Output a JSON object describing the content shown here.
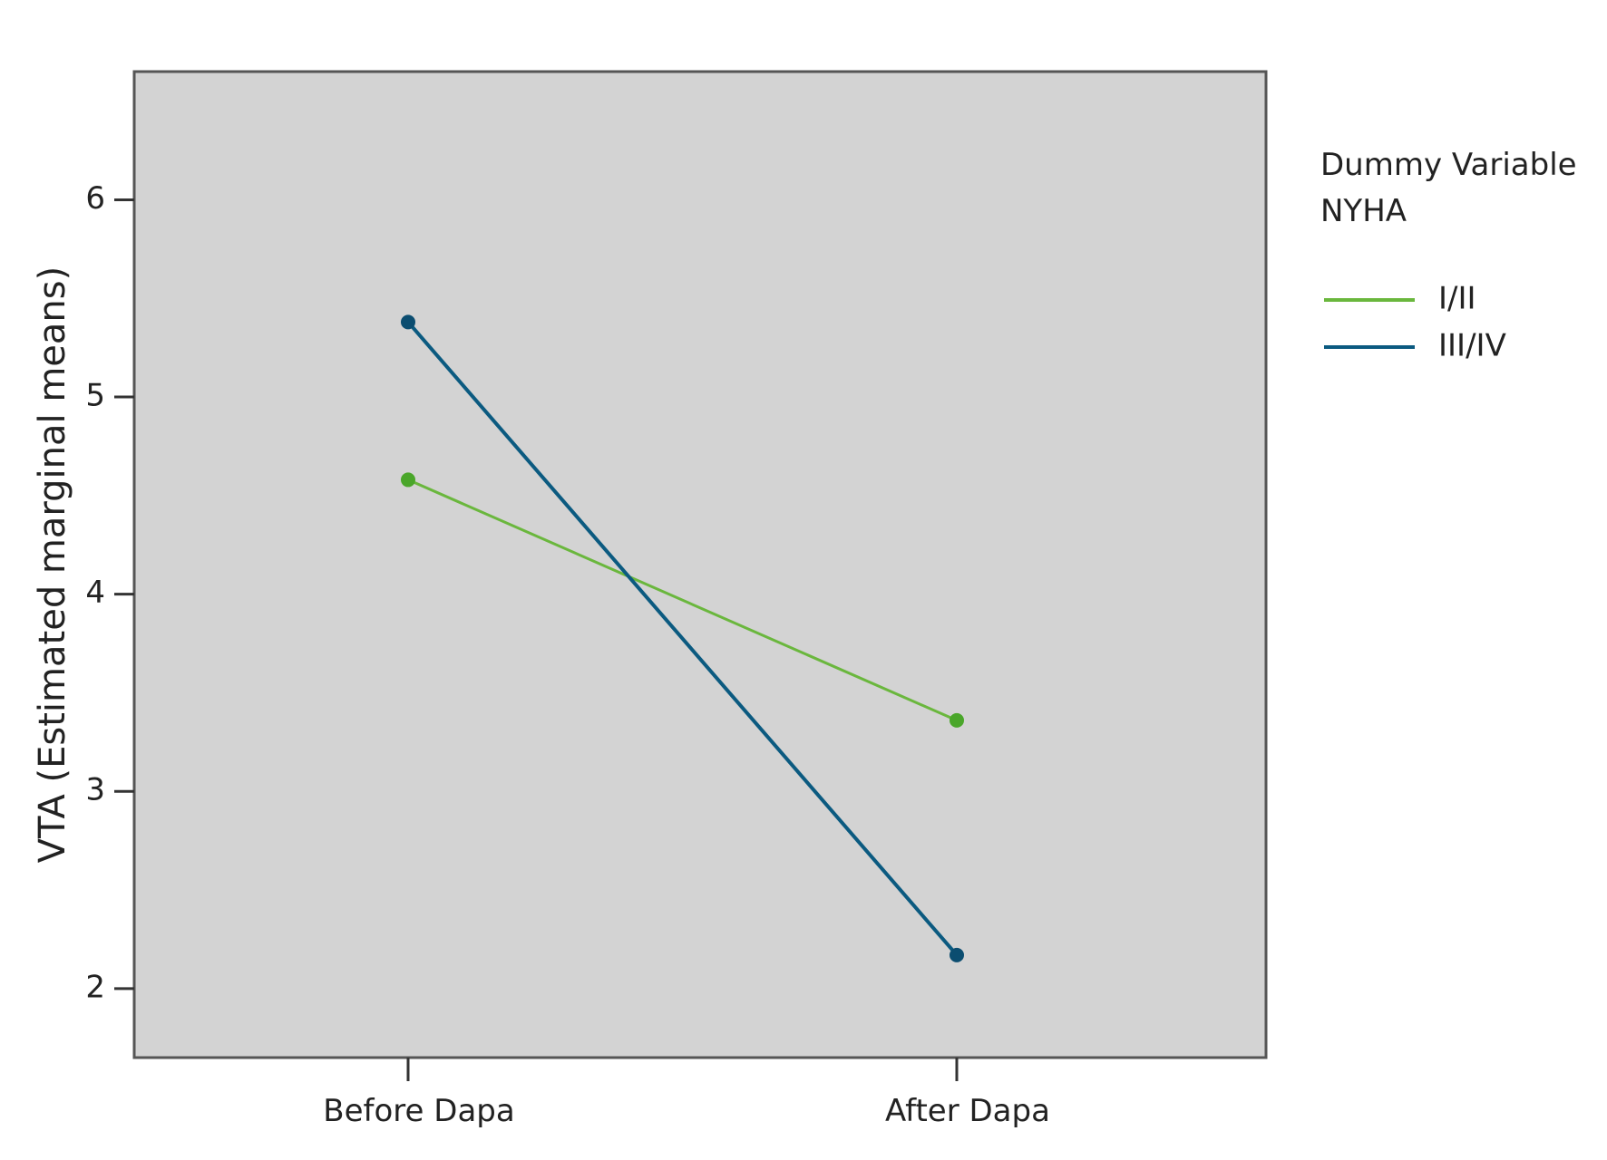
{
  "chart_data": {
    "type": "line",
    "title": "",
    "xlabel": "",
    "ylabel": "VTA (Estimated marginal means)",
    "categories": [
      "Before Dapa",
      "After Dapa"
    ],
    "ylim": [
      1.65,
      6.65
    ],
    "yticks": [
      2,
      3,
      4,
      5,
      6
    ],
    "grid": false,
    "legend": {
      "title_lines": [
        "Dummy Variable",
        "NYHA"
      ],
      "placement": "right"
    },
    "series": [
      {
        "name": "I/II",
        "values": [
          4.58,
          3.36
        ],
        "color": "#6ab73d",
        "marker_color": "#4aa62a"
      },
      {
        "name": "III/IV",
        "values": [
          5.38,
          2.17
        ],
        "color": "#0b5a80",
        "marker_color": "#0b4d70"
      }
    ],
    "plot_background": "#d3d3d3"
  }
}
